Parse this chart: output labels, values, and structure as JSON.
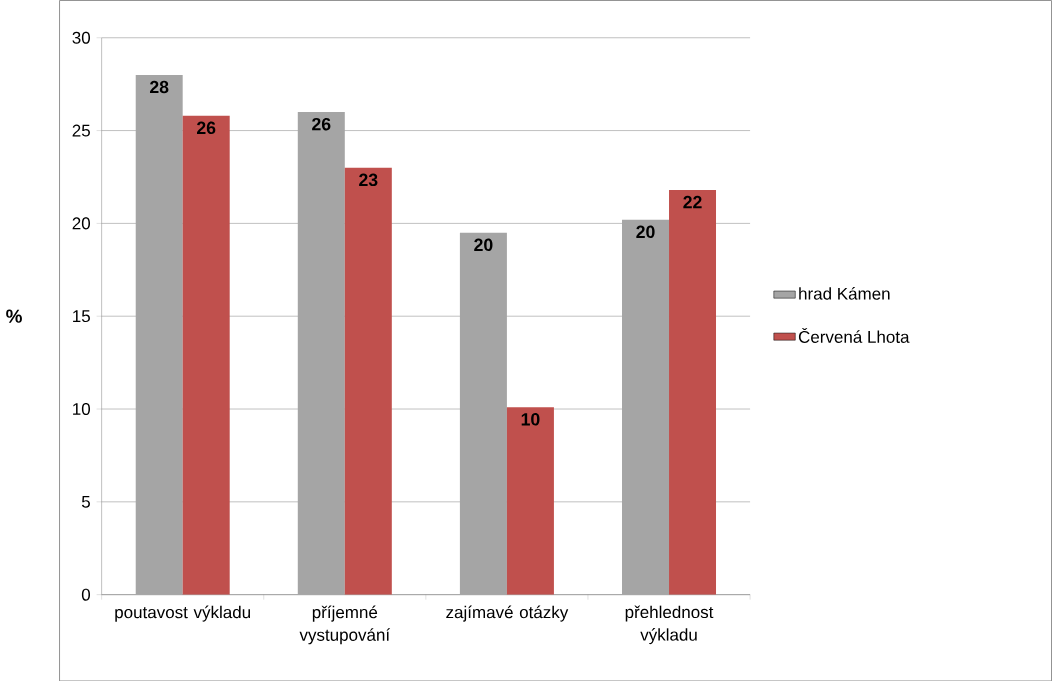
{
  "chart_data": {
    "type": "bar",
    "ylabel": "%",
    "categories": [
      "poutavost výkladu",
      "příjemné vystupování",
      "zajímavé otázky",
      "přehlednost výkladu"
    ],
    "series": [
      {
        "name": "hrad Kámen",
        "color": "#a5a5a5",
        "values": [
          28.0,
          26.0,
          19.5,
          20.2
        ],
        "value_labels": [
          "28",
          "26",
          "20",
          "20"
        ]
      },
      {
        "name": "Červená Lhota",
        "color": "#c0504d",
        "values": [
          25.8,
          23.0,
          10.1,
          21.8
        ],
        "value_labels": [
          "26",
          "23",
          "10",
          "22"
        ]
      }
    ],
    "ylim": [
      0,
      30
    ],
    "yticks": [
      0,
      5,
      10,
      15,
      20,
      25,
      30
    ],
    "grid": "y",
    "legend": "right"
  }
}
